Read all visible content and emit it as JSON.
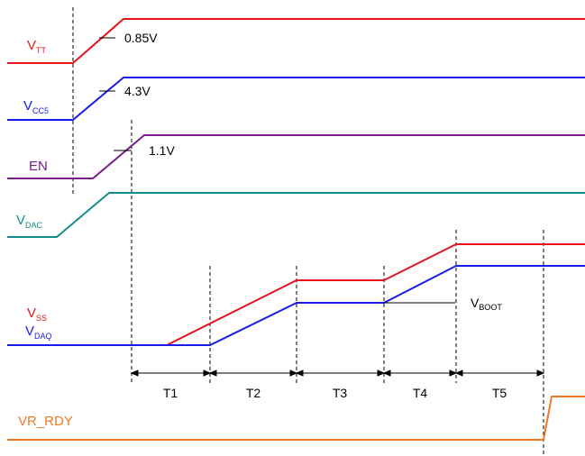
{
  "colors": {
    "vtt": "#e8141a",
    "vcc5": "#1a1aeb",
    "en": "#7a1c8e",
    "vdac": "#168c8c",
    "vss": "#e8141a",
    "vdaq": "#1a1aeb",
    "vr_rdy": "#f07820",
    "marker": "#000000"
  },
  "signals": {
    "vtt": {
      "main": "V",
      "sub": "TT"
    },
    "vcc5": {
      "main": "V",
      "sub": "CC5"
    },
    "en": {
      "main": "EN"
    },
    "vdac": {
      "main": "V",
      "sub": "DAC"
    },
    "vss": {
      "main": "V",
      "sub": "SS"
    },
    "vdaq": {
      "main": "V",
      "sub": "DAQ"
    },
    "vr_rdy": {
      "main": "VR_RDY"
    }
  },
  "annotations": {
    "vtt_threshold": "0.85V",
    "vcc5_threshold": "4.3V",
    "en_threshold": "1.1V",
    "vboot": {
      "main": "V",
      "sub": "BOOT"
    }
  },
  "intervals": [
    "T1",
    "T2",
    "T3",
    "T4",
    "T5"
  ]
}
